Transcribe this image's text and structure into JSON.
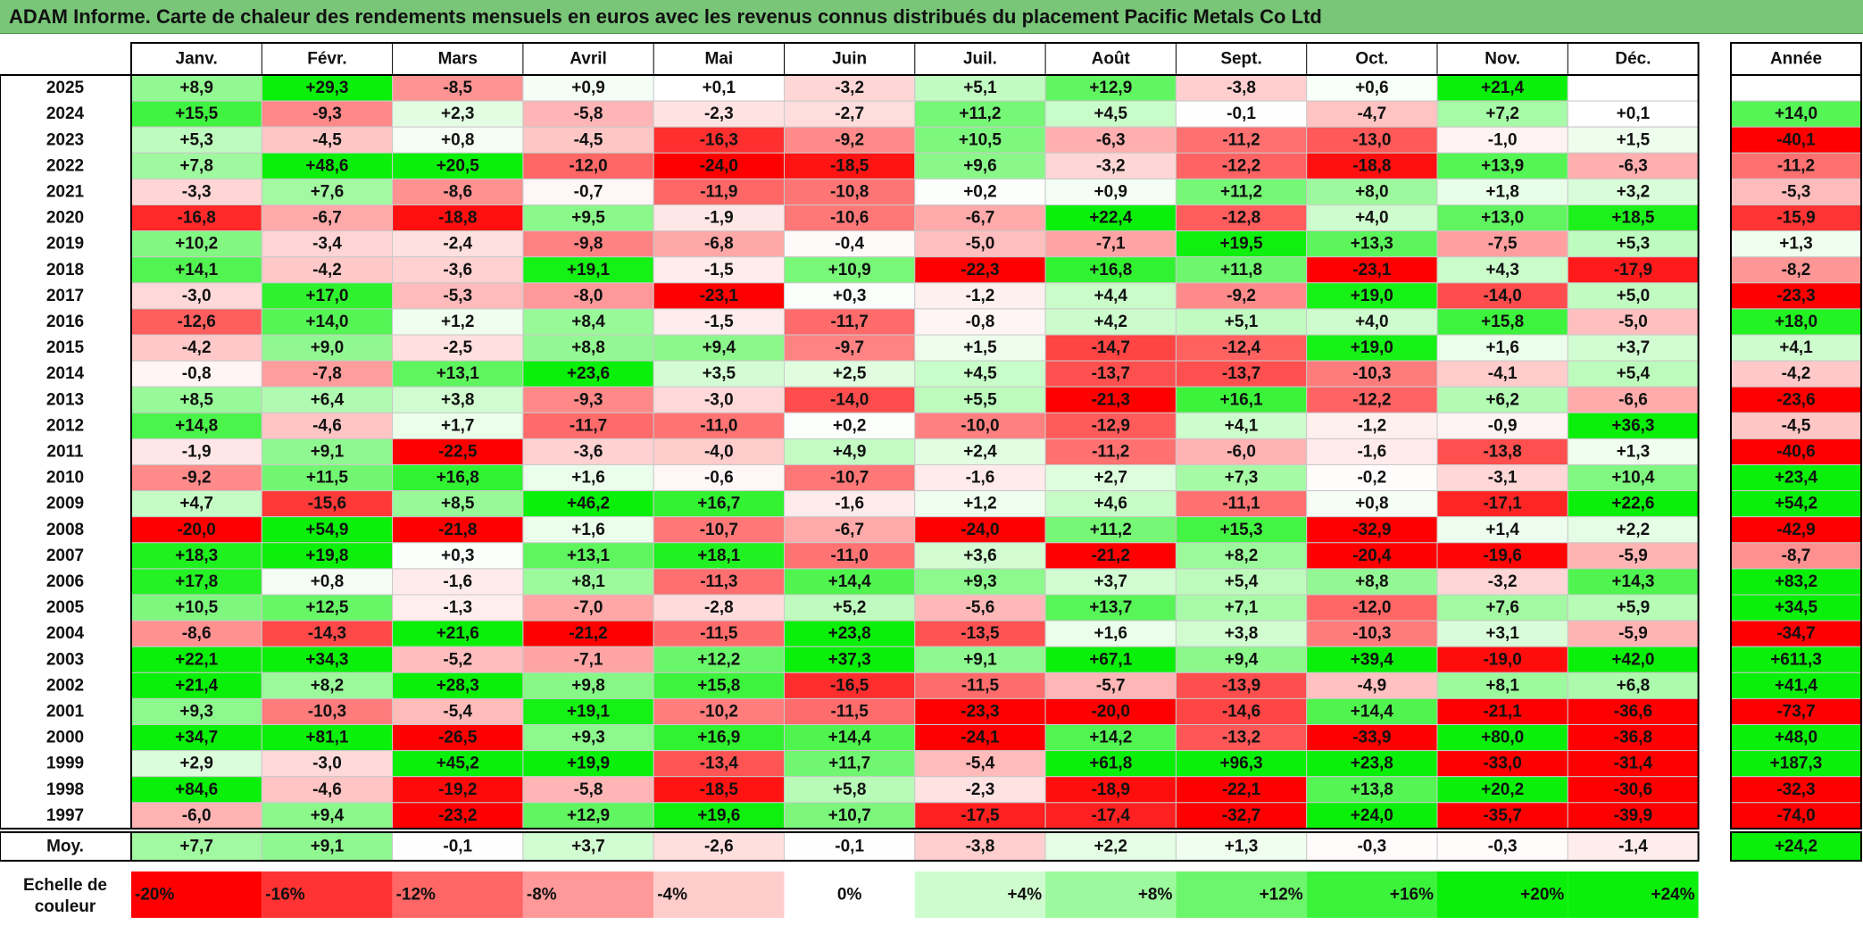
{
  "title": "ADAM Informe. Carte de chaleur des rendements mensuels en euros avec les revenus connus distribués du placement Pacific Metals Co Ltd",
  "chart_data": {
    "type": "heatmap",
    "months": [
      "Janv.",
      "Févr.",
      "Mars",
      "Avril",
      "Mai",
      "Juin",
      "Juil.",
      "Août",
      "Sept.",
      "Oct.",
      "Nov.",
      "Déc."
    ],
    "year_column_label": "Année",
    "avg_row_label": "Moy.",
    "rows": [
      {
        "year": "2025",
        "values": [
          "+8,9",
          "+29,3",
          "-8,5",
          "+0,9",
          "+0,1",
          "-3,2",
          "+5,1",
          "+12,9",
          "-3,8",
          "+0,6",
          "+21,4",
          ""
        ],
        "annual": ""
      },
      {
        "year": "2024",
        "values": [
          "+15,5",
          "-9,3",
          "+2,3",
          "-5,8",
          "-2,3",
          "-2,7",
          "+11,2",
          "+4,5",
          "-0,1",
          "-4,7",
          "+7,2",
          "+0,1"
        ],
        "annual": "+14,0"
      },
      {
        "year": "2023",
        "values": [
          "+5,3",
          "-4,5",
          "+0,8",
          "-4,5",
          "-16,3",
          "-9,2",
          "+10,5",
          "-6,3",
          "-11,2",
          "-13,0",
          "-1,0",
          "+1,5"
        ],
        "annual": "-40,1"
      },
      {
        "year": "2022",
        "values": [
          "+7,8",
          "+48,6",
          "+20,5",
          "-12,0",
          "-24,0",
          "-18,5",
          "+9,6",
          "-3,2",
          "-12,2",
          "-18,8",
          "+13,9",
          "-6,3"
        ],
        "annual": "-11,2"
      },
      {
        "year": "2021",
        "values": [
          "-3,3",
          "+7,6",
          "-8,6",
          "-0,7",
          "-11,9",
          "-10,8",
          "+0,2",
          "+0,9",
          "+11,2",
          "+8,0",
          "+1,8",
          "+3,2"
        ],
        "annual": "-5,3"
      },
      {
        "year": "2020",
        "values": [
          "-16,8",
          "-6,7",
          "-18,8",
          "+9,5",
          "-1,9",
          "-10,6",
          "-6,7",
          "+22,4",
          "-12,8",
          "+4,0",
          "+13,0",
          "+18,5"
        ],
        "annual": "-15,9"
      },
      {
        "year": "2019",
        "values": [
          "+10,2",
          "-3,4",
          "-2,4",
          "-9,8",
          "-6,8",
          "-0,4",
          "-5,0",
          "-7,1",
          "+19,5",
          "+13,3",
          "-7,5",
          "+5,3"
        ],
        "annual": "+1,3"
      },
      {
        "year": "2018",
        "values": [
          "+14,1",
          "-4,2",
          "-3,6",
          "+19,1",
          "-1,5",
          "+10,9",
          "-22,3",
          "+16,8",
          "+11,8",
          "-23,1",
          "+4,3",
          "-17,9"
        ],
        "annual": "-8,2"
      },
      {
        "year": "2017",
        "values": [
          "-3,0",
          "+17,0",
          "-5,3",
          "-8,0",
          "-23,1",
          "+0,3",
          "-1,2",
          "+4,4",
          "-9,2",
          "+19,0",
          "-14,0",
          "+5,0"
        ],
        "annual": "-23,3"
      },
      {
        "year": "2016",
        "values": [
          "-12,6",
          "+14,0",
          "+1,2",
          "+8,4",
          "-1,5",
          "-11,7",
          "-0,8",
          "+4,2",
          "+5,1",
          "+4,0",
          "+15,8",
          "-5,0"
        ],
        "annual": "+18,0"
      },
      {
        "year": "2015",
        "values": [
          "-4,2",
          "+9,0",
          "-2,5",
          "+8,8",
          "+9,4",
          "-9,7",
          "+1,5",
          "-14,7",
          "-12,4",
          "+19,0",
          "+1,6",
          "+3,7"
        ],
        "annual": "+4,1"
      },
      {
        "year": "2014",
        "values": [
          "-0,8",
          "-7,8",
          "+13,1",
          "+23,6",
          "+3,5",
          "+2,5",
          "+4,5",
          "-13,7",
          "-13,7",
          "-10,3",
          "-4,1",
          "+5,4"
        ],
        "annual": "-4,2"
      },
      {
        "year": "2013",
        "values": [
          "+8,5",
          "+6,4",
          "+3,8",
          "-9,3",
          "-3,0",
          "-14,0",
          "+5,5",
          "-21,3",
          "+16,1",
          "-12,2",
          "+6,2",
          "-6,6"
        ],
        "annual": "-23,6"
      },
      {
        "year": "2012",
        "values": [
          "+14,8",
          "-4,6",
          "+1,7",
          "-11,7",
          "-11,0",
          "+0,2",
          "-10,0",
          "-12,9",
          "+4,1",
          "-1,2",
          "-0,9",
          "+36,3"
        ],
        "annual": "-4,5"
      },
      {
        "year": "2011",
        "values": [
          "-1,9",
          "+9,1",
          "-22,5",
          "-3,6",
          "-4,0",
          "+4,9",
          "+2,4",
          "-11,2",
          "-6,0",
          "-1,6",
          "-13,8",
          "+1,3"
        ],
        "annual": "-40,6"
      },
      {
        "year": "2010",
        "values": [
          "-9,2",
          "+11,5",
          "+16,8",
          "+1,6",
          "-0,6",
          "-10,7",
          "-1,6",
          "+2,7",
          "+7,3",
          "-0,2",
          "-3,1",
          "+10,4"
        ],
        "annual": "+23,4"
      },
      {
        "year": "2009",
        "values": [
          "+4,7",
          "-15,6",
          "+8,5",
          "+46,2",
          "+16,7",
          "-1,6",
          "+1,2",
          "+4,6",
          "-11,1",
          "+0,8",
          "-17,1",
          "+22,6"
        ],
        "annual": "+54,2"
      },
      {
        "year": "2008",
        "values": [
          "-20,0",
          "+54,9",
          "-21,8",
          "+1,6",
          "-10,7",
          "-6,7",
          "-24,0",
          "+11,2",
          "+15,3",
          "-32,9",
          "+1,4",
          "+2,2"
        ],
        "annual": "-42,9"
      },
      {
        "year": "2007",
        "values": [
          "+18,3",
          "+19,8",
          "+0,3",
          "+13,1",
          "+18,1",
          "-11,0",
          "+3,6",
          "-21,2",
          "+8,2",
          "-20,4",
          "-19,6",
          "-5,9"
        ],
        "annual": "-8,7"
      },
      {
        "year": "2006",
        "values": [
          "+17,8",
          "+0,8",
          "-1,6",
          "+8,1",
          "-11,3",
          "+14,4",
          "+9,3",
          "+3,7",
          "+5,4",
          "+8,8",
          "-3,2",
          "+14,3"
        ],
        "annual": "+83,2"
      },
      {
        "year": "2005",
        "values": [
          "+10,5",
          "+12,5",
          "-1,3",
          "-7,0",
          "-2,8",
          "+5,2",
          "-5,6",
          "+13,7",
          "+7,1",
          "-12,0",
          "+7,6",
          "+5,9"
        ],
        "annual": "+34,5"
      },
      {
        "year": "2004",
        "values": [
          "-8,6",
          "-14,3",
          "+21,6",
          "-21,2",
          "-11,5",
          "+23,8",
          "-13,5",
          "+1,6",
          "+3,8",
          "-10,3",
          "+3,1",
          "-5,9"
        ],
        "annual": "-34,7"
      },
      {
        "year": "2003",
        "values": [
          "+22,1",
          "+34,3",
          "-5,2",
          "-7,1",
          "+12,2",
          "+37,3",
          "+9,1",
          "+67,1",
          "+9,4",
          "+39,4",
          "-19,0",
          "+42,0"
        ],
        "annual": "+611,3"
      },
      {
        "year": "2002",
        "values": [
          "+21,4",
          "+8,2",
          "+28,3",
          "+9,8",
          "+15,8",
          "-16,5",
          "-11,5",
          "-5,7",
          "-13,9",
          "-4,9",
          "+8,1",
          "+6,8"
        ],
        "annual": "+41,4"
      },
      {
        "year": "2001",
        "values": [
          "+9,3",
          "-10,3",
          "-5,4",
          "+19,1",
          "-10,2",
          "-11,5",
          "-23,3",
          "-20,0",
          "-14,6",
          "+14,4",
          "-21,1",
          "-36,6"
        ],
        "annual": "-73,7"
      },
      {
        "year": "2000",
        "values": [
          "+34,7",
          "+81,1",
          "-26,5",
          "+9,3",
          "+16,9",
          "+14,4",
          "-24,1",
          "+14,2",
          "-13,2",
          "-33,9",
          "+80,0",
          "-36,8"
        ],
        "annual": "+48,0"
      },
      {
        "year": "1999",
        "values": [
          "+2,9",
          "-3,0",
          "+45,2",
          "+19,9",
          "-13,4",
          "+11,7",
          "-5,4",
          "+61,8",
          "+96,3",
          "+23,8",
          "-33,0",
          "-31,4"
        ],
        "annual": "+187,3"
      },
      {
        "year": "1998",
        "values": [
          "+84,6",
          "-4,6",
          "-19,2",
          "-5,8",
          "-18,5",
          "+5,8",
          "-2,3",
          "-18,9",
          "-22,1",
          "+13,8",
          "+20,2",
          "-30,6"
        ],
        "annual": "-32,3"
      },
      {
        "year": "1997",
        "values": [
          "-6,0",
          "+9,4",
          "-23,2",
          "+12,9",
          "+19,6",
          "+10,7",
          "-17,5",
          "-17,4",
          "-32,7",
          "+24,0",
          "-35,7",
          "-39,9"
        ],
        "annual": "-74,0"
      }
    ],
    "averages": [
      "+7,7",
      "+9,1",
      "-0,1",
      "+3,7",
      "-2,6",
      "-0,1",
      "-3,8",
      "+2,2",
      "+1,3",
      "-0,3",
      "-0,3",
      "-1,4"
    ],
    "average_annual": "+24,2",
    "scale_label": "Echelle de couleur",
    "scale": [
      {
        "label": "-20%",
        "value": -20
      },
      {
        "label": "-16%",
        "value": -16
      },
      {
        "label": "-12%",
        "value": -12
      },
      {
        "label": "-8%",
        "value": -8
      },
      {
        "label": "-4%",
        "value": -4
      },
      {
        "label": "0%",
        "value": 0
      },
      {
        "label": "+4%",
        "value": 4
      },
      {
        "label": "+8%",
        "value": 8
      },
      {
        "label": "+12%",
        "value": 12
      },
      {
        "label": "+16%",
        "value": 16
      },
      {
        "label": "+20%",
        "value": 20
      },
      {
        "label": "+24%",
        "value": 24
      }
    ]
  }
}
